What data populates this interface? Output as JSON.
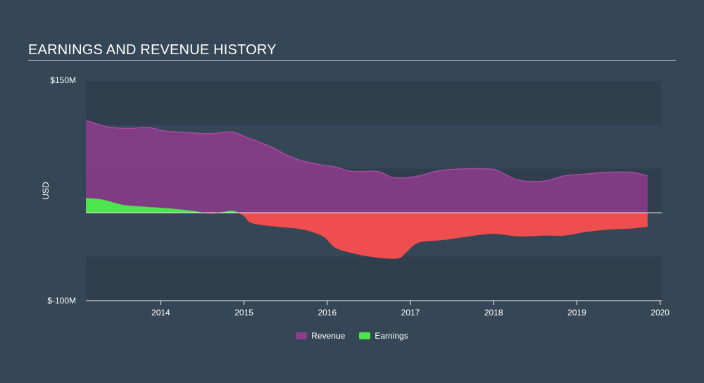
{
  "colors": {
    "background": "#354656",
    "band_dark": "#2f3f4e",
    "band_light": "#354656",
    "revenue": "#8e3c8c",
    "earnings_positive": "#4de54d",
    "earnings_negative": "#ee4e4e",
    "axis": "#ffffff"
  },
  "chart_data": {
    "type": "area",
    "title": "EARNINGS AND REVENUE HISTORY",
    "ylabel": "USD",
    "ylim": [
      -100,
      150
    ],
    "y_tick_labels": [
      "$150M",
      "$-100M"
    ],
    "x_tick_labels": [
      "2014",
      "2015",
      "2016",
      "2017",
      "2018",
      "2019",
      "2020"
    ],
    "x_ticks": [
      2014,
      2015,
      2016,
      2017,
      2018,
      2019,
      2020
    ],
    "xlim": [
      2013.1,
      2020.02
    ],
    "legend": [
      {
        "name": "Revenue",
        "color": "#8e3c8c"
      },
      {
        "name": "Earnings",
        "color": "#4de54d"
      }
    ],
    "series": [
      {
        "name": "Revenue",
        "x": [
          2013.1,
          2013.35,
          2013.6,
          2013.85,
          2014.05,
          2014.35,
          2014.6,
          2014.85,
          2015.05,
          2015.3,
          2015.6,
          2015.9,
          2016.1,
          2016.3,
          2016.6,
          2016.8,
          2017.05,
          2017.35,
          2017.65,
          2017.9,
          2018.05,
          2018.3,
          2018.6,
          2018.85,
          2019.1,
          2019.35,
          2019.65,
          2019.85
        ],
        "values": [
          105,
          98,
          96,
          97,
          93,
          91,
          90,
          92,
          85,
          76,
          62,
          55,
          52,
          47,
          47,
          40,
          41,
          48,
          50,
          50,
          48,
          37,
          36,
          42,
          44,
          46,
          46,
          42
        ]
      },
      {
        "name": "Earnings",
        "x": [
          2013.1,
          2013.3,
          2013.55,
          2013.8,
          2014.1,
          2014.4,
          2014.6,
          2014.75,
          2014.88,
          2015.0,
          2015.1,
          2015.4,
          2015.7,
          2015.95,
          2016.1,
          2016.35,
          2016.6,
          2016.85,
          2016.95,
          2017.1,
          2017.4,
          2017.7,
          2018.0,
          2018.3,
          2018.6,
          2018.85,
          2019.1,
          2019.4,
          2019.65,
          2019.85
        ],
        "values": [
          17,
          15,
          9,
          7,
          5,
          2,
          -1,
          1,
          2,
          -4,
          -12,
          -16,
          -19,
          -27,
          -40,
          -47,
          -51,
          -52,
          -45,
          -34,
          -31,
          -27,
          -24,
          -27,
          -26,
          -26,
          -22,
          -19,
          -18,
          -16
        ]
      }
    ]
  }
}
